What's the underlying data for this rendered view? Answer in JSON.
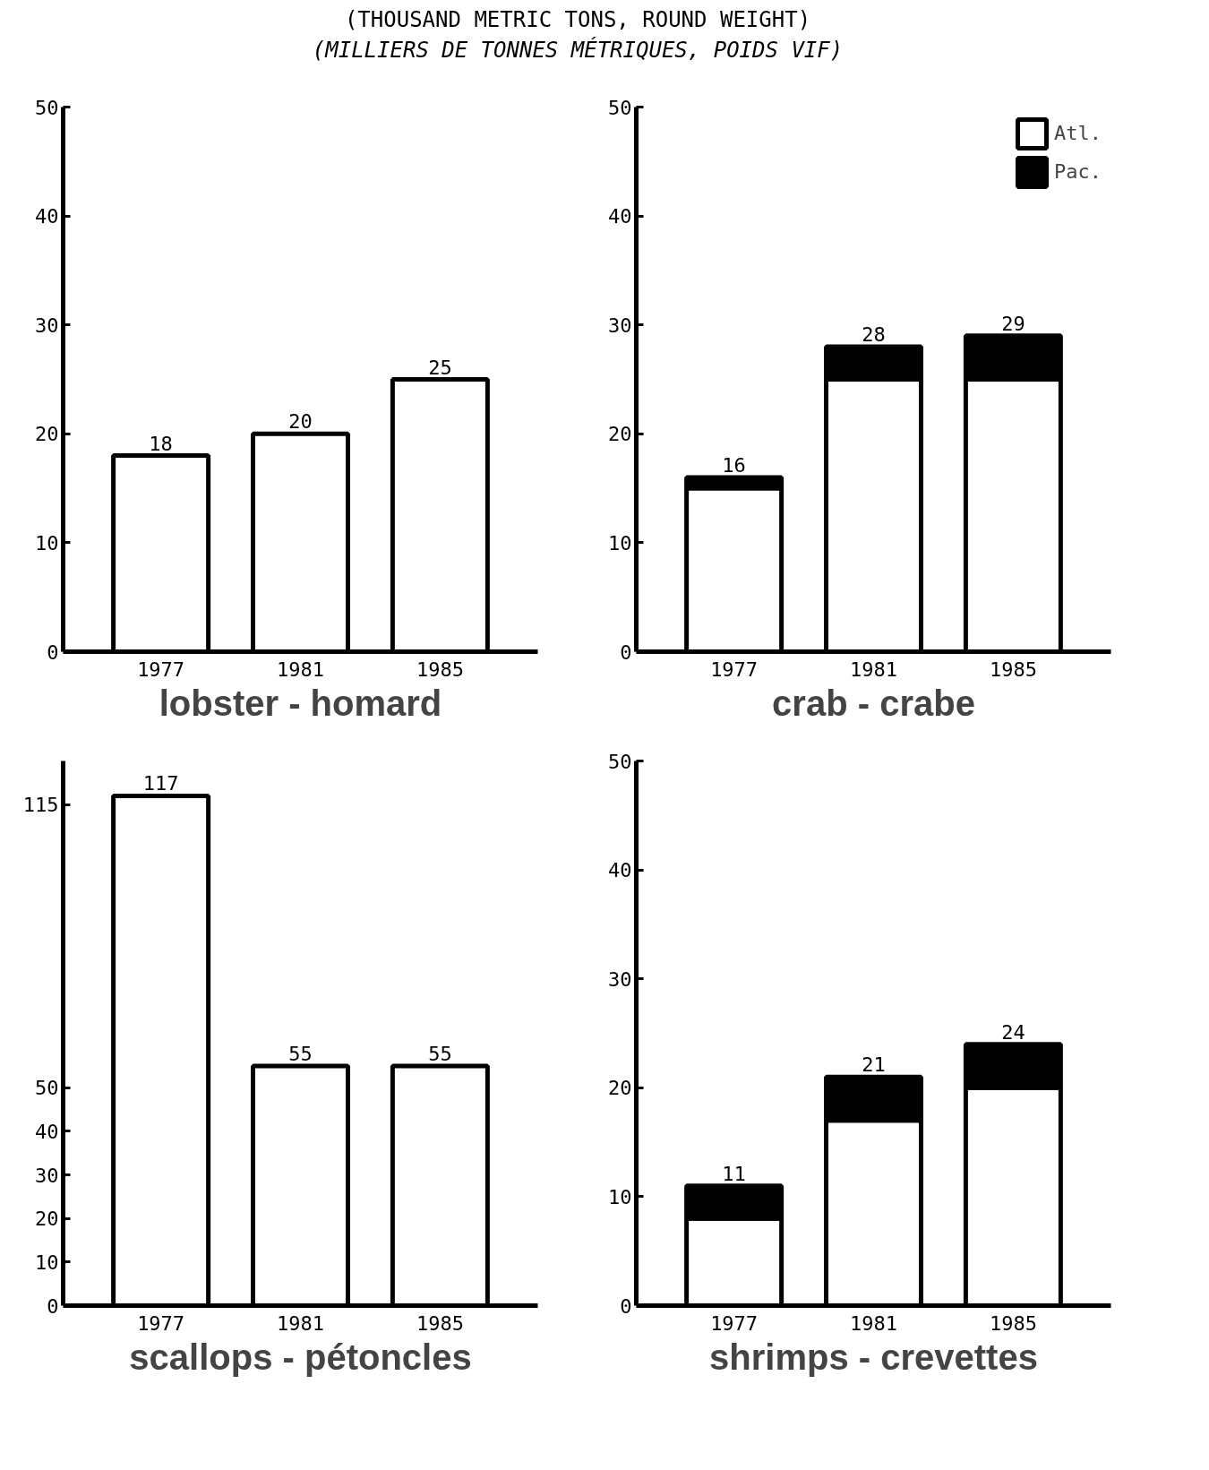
{
  "chart_data": [
    {
      "type": "bar",
      "title": "(THOUSAND METRIC TONS, ROUND WEIGHT)",
      "subtitle": "(MILLIERS DE TONNES MÉTRIQUES, POIDS VIF)",
      "xlabel": "lobster - homard",
      "categories": [
        "1977",
        "1981",
        "1985"
      ],
      "values": [
        18,
        20,
        25
      ],
      "color": "#ffffff",
      "ylim": [
        0,
        50
      ],
      "yticks": [
        0,
        10,
        20,
        30,
        40,
        50
      ],
      "data_labels": true,
      "grid": false,
      "legend": false
    },
    {
      "type": "bar",
      "xlabel": "crab - crabe",
      "categories": [
        "1977",
        "1981",
        "1985"
      ],
      "stacked": true,
      "series": [
        {
          "name": "Atl.",
          "color": "#ffffff",
          "values": [
            15,
            25,
            25
          ]
        },
        {
          "name": "Pac.",
          "color": "#000000",
          "values": [
            1,
            3,
            4
          ]
        }
      ],
      "totals": [
        "16",
        "28",
        "29"
      ],
      "ylim": [
        0,
        50
      ],
      "yticks": [
        0,
        10,
        20,
        30,
        40,
        50
      ],
      "grid": false,
      "legend": "top right"
    },
    {
      "type": "bar",
      "xlabel": "scallops - pétoncles",
      "categories": [
        "1977",
        "1981",
        "1985"
      ],
      "values": [
        117,
        55,
        55
      ],
      "color": "#ffffff",
      "ylim": [
        0,
        125
      ],
      "yticks": [
        0,
        10,
        20,
        30,
        40,
        50,
        115
      ],
      "data_labels": true,
      "grid": false,
      "legend": false
    },
    {
      "type": "bar",
      "xlabel": "shrimps - crevettes",
      "categories": [
        "1977",
        "1981",
        "1985"
      ],
      "stacked": true,
      "series": [
        {
          "color": "#ffffff",
          "values": [
            8,
            17,
            20
          ]
        },
        {
          "color": "#000000",
          "values": [
            3,
            4,
            4
          ]
        }
      ],
      "totals": [
        "11",
        "21",
        "24"
      ],
      "ylim": [
        0,
        50
      ],
      "yticks": [
        0,
        10,
        20,
        30,
        40,
        50
      ],
      "grid": false,
      "legend": false
    }
  ]
}
